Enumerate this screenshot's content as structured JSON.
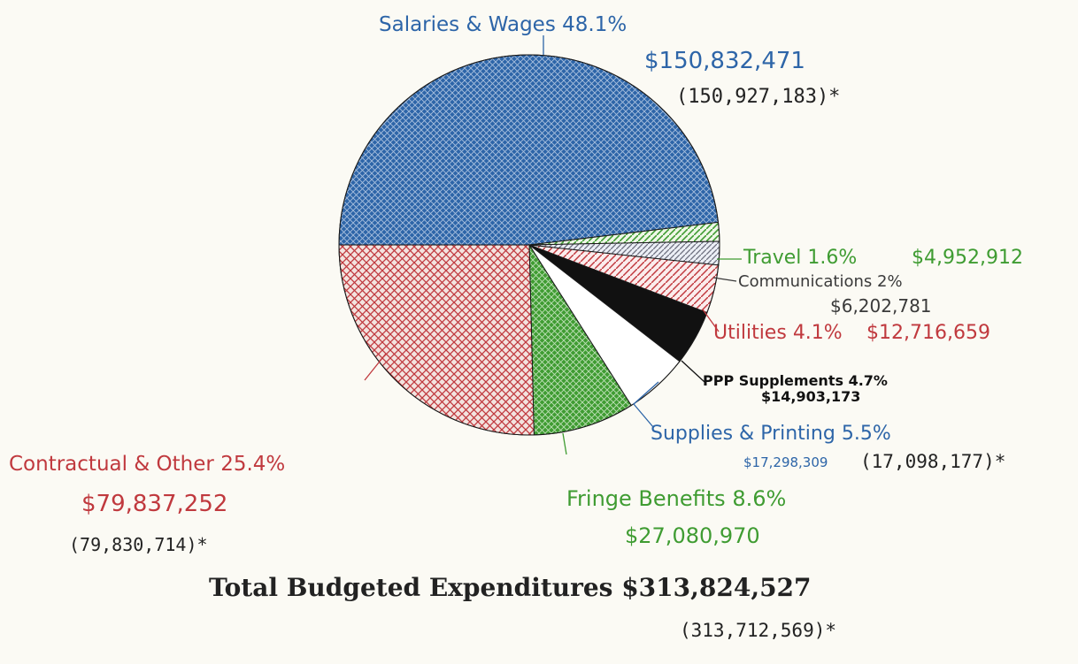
{
  "colors": {
    "background": "#fbfaf4",
    "blue": "#2d65a8",
    "red": "#c0393e",
    "green": "#3f9c32",
    "grey": "#3a3a3a",
    "black": "#111111"
  },
  "chart_data": {
    "type": "pie",
    "title": "",
    "slices": [
      {
        "name": "Salaries & Wages",
        "percent_label": "48.1%",
        "percent": 48.1,
        "amount": "$150,832,471",
        "amount_value": 150832471,
        "prior": "(150,927,183)*",
        "color": "#2d65a8",
        "fill": "crosshatch"
      },
      {
        "name": "Travel",
        "percent_label": "1.6%",
        "percent": 1.6,
        "amount": "$4,952,912",
        "amount_value": 4952912,
        "prior": "",
        "color": "#3f9c32",
        "fill": "diagonal"
      },
      {
        "name": "Communications",
        "percent_label": "2%",
        "percent": 2.0,
        "amount": "$6,202,781",
        "amount_value": 6202781,
        "prior": "",
        "color": "#8a8a96",
        "fill": "diagonal"
      },
      {
        "name": "Utilities",
        "percent_label": "4.1%",
        "percent": 4.1,
        "amount": "$12,716,659",
        "amount_value": 12716659,
        "prior": "",
        "color": "#c0393e",
        "fill": "diagonal"
      },
      {
        "name": "PPP Supplements",
        "percent_label": "4.7%",
        "percent": 4.7,
        "amount": "$14,903,173",
        "amount_value": 14903173,
        "prior": "",
        "color": "#111111",
        "fill": "solid"
      },
      {
        "name": "Supplies & Printing",
        "percent_label": "5.5%",
        "percent": 5.5,
        "amount": "$17,298,309",
        "amount_value": 17298309,
        "prior": "(17,098,177)*",
        "color": "#ffffff",
        "fill": "solid"
      },
      {
        "name": "Fringe Benefits",
        "percent_label": "8.6%",
        "percent": 8.6,
        "amount": "$27,080,970",
        "amount_value": 27080970,
        "prior": "",
        "color": "#3f9c32",
        "fill": "crosshatch"
      },
      {
        "name": "Contractual & Other",
        "percent_label": "25.4%",
        "percent": 25.4,
        "amount": "$79,837,252",
        "amount_value": 79837252,
        "prior": "(79,830,714)*",
        "color": "#c0393e",
        "fill": "crosshatch"
      }
    ],
    "total": {
      "label": "Total Budgeted Expenditures",
      "amount": "$313,824,527",
      "amount_value": 313824527,
      "prior": "(313,712,569)*"
    }
  }
}
